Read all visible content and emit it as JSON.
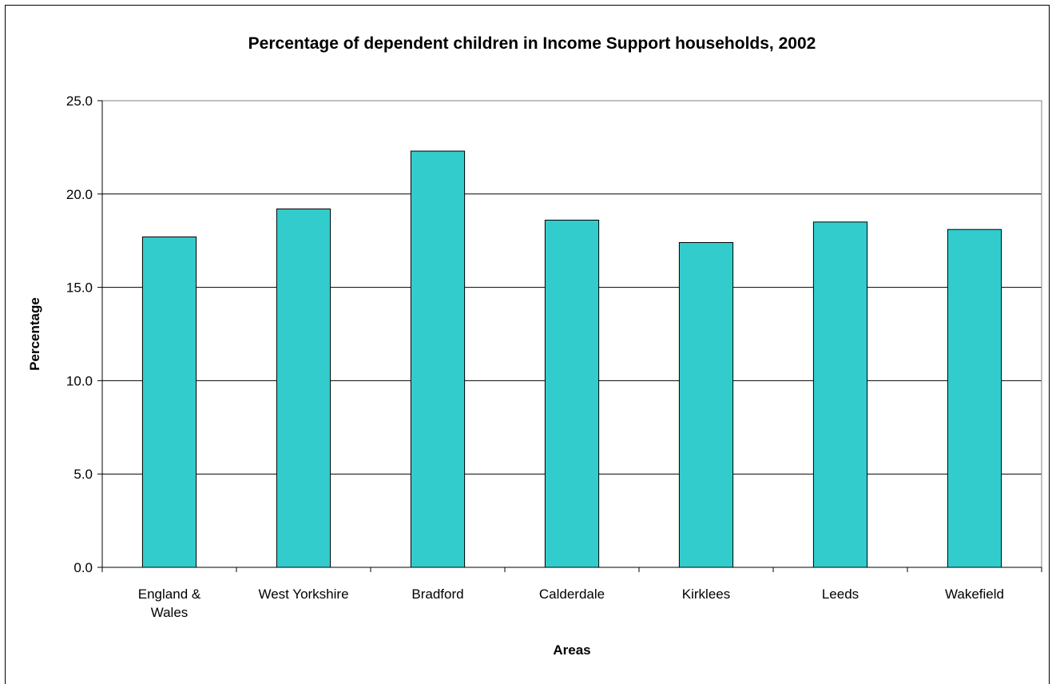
{
  "chart_data": {
    "type": "bar",
    "title": "Percentage of dependent children in Income Support households, 2002",
    "xlabel": "Areas",
    "ylabel": "Percentage",
    "categories": [
      [
        "England &",
        "Wales"
      ],
      [
        "West Yorkshire"
      ],
      [
        "Bradford"
      ],
      [
        "Calderdale"
      ],
      [
        "Kirklees"
      ],
      [
        "Leeds"
      ],
      [
        "Wakefield"
      ]
    ],
    "values": [
      17.7,
      19.2,
      22.3,
      18.6,
      17.4,
      18.5,
      18.1
    ],
    "ylim": [
      0,
      25
    ],
    "yticks": [
      "0.0",
      "5.0",
      "10.0",
      "15.0",
      "20.0",
      "25.0"
    ],
    "ytick_values": [
      0,
      5,
      10,
      15,
      20,
      25
    ],
    "grid": true,
    "legend": "none",
    "bar_color": "#33CCCC",
    "bar_edge_color": "#000000"
  }
}
